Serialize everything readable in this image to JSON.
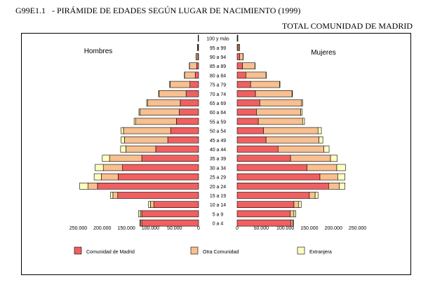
{
  "header": {
    "code": "G99E1.1",
    "title": "- PIRÁMIDE DE EDADES SEGÚN LUGAR DE NACIMIENTO (1999)",
    "subtitle": "TOTAL COMUNIDAD DE MADRID"
  },
  "colors": {
    "madrid": "#F06060",
    "otra": "#F8BF8F",
    "extranjero": "#FFFFC0",
    "stroke": "#000000"
  },
  "chart_data": {
    "type": "bar",
    "orientation": "horizontal",
    "layout": "population-pyramid",
    "stacked": true,
    "title": "PIRÁMIDE DE EDADES SEGÚN LUGAR DE NACIMIENTO (1999)",
    "subtitle": "TOTAL COMUNIDAD DE MADRID",
    "side_labels": [
      "Hombres",
      "Mujeres"
    ],
    "xlim": [
      -250000,
      250000
    ],
    "ticks": [
      -250000,
      -200000,
      -150000,
      -100000,
      -50000,
      0,
      50000,
      100000,
      150000,
      200000,
      250000
    ],
    "tick_labels": [
      "250.000",
      "200.000",
      "150.000",
      "100.000",
      "50.000",
      "0",
      "50.000",
      "100.000",
      "150.000",
      "200.000",
      "250.000"
    ],
    "categories": [
      "0 a 4",
      "5 a 9",
      "10 a 14",
      "15 a 19",
      "20 a 24",
      "25 a 29",
      "30 a 34",
      "35 a 39",
      "40 a 44",
      "45 a 49",
      "50 a 54",
      "55 a 59",
      "60 a 64",
      "65 a 69",
      "70 a 74",
      "75 a 79",
      "80 a 84",
      "85 a 89",
      "90 a 94",
      "95 a 99",
      "100 y más"
    ],
    "series": [
      {
        "name": "Comunidad de Madrid",
        "men": [
          118000,
          118000,
          93000,
          168000,
          210000,
          167000,
          158000,
          118000,
          89000,
          64000,
          58000,
          46000,
          40000,
          38000,
          26000,
          18000,
          7000,
          4000,
          1500,
          1000,
          500
        ],
        "women": [
          112000,
          110000,
          118000,
          150000,
          190000,
          172000,
          145000,
          111000,
          85000,
          60000,
          55000,
          44000,
          40000,
          47000,
          38000,
          28000,
          18000,
          11000,
          5000,
          2500,
          1000
        ]
      },
      {
        "name": "Otra Comunidad",
        "men": [
          3000,
          3000,
          7000,
          10000,
          20000,
          35000,
          40000,
          67000,
          62000,
          90000,
          98000,
          85000,
          82000,
          68000,
          56000,
          41000,
          22000,
          15000,
          3500,
          1500,
          500
        ],
        "women": [
          4000,
          8000,
          10000,
          12000,
          22000,
          37000,
          62000,
          83000,
          95000,
          110000,
          113000,
          92000,
          92000,
          87000,
          76000,
          60000,
          42000,
          26000,
          7500,
          2500,
          500
        ]
      },
      {
        "name": "Extranjera",
        "men": [
          1000,
          4000,
          4000,
          5000,
          17000,
          15000,
          17000,
          15000,
          11000,
          7000,
          5000,
          3000,
          2000,
          2000,
          1000,
          1000,
          500,
          300,
          200,
          100,
          0
        ],
        "women": [
          1000,
          4000,
          5000,
          6000,
          12000,
          15000,
          18000,
          14000,
          11000,
          8000,
          7000,
          4000,
          3000,
          2000,
          1000,
          1000,
          500,
          300,
          200,
          100,
          0
        ]
      }
    ],
    "legend_position": "bottom",
    "grid": false
  }
}
